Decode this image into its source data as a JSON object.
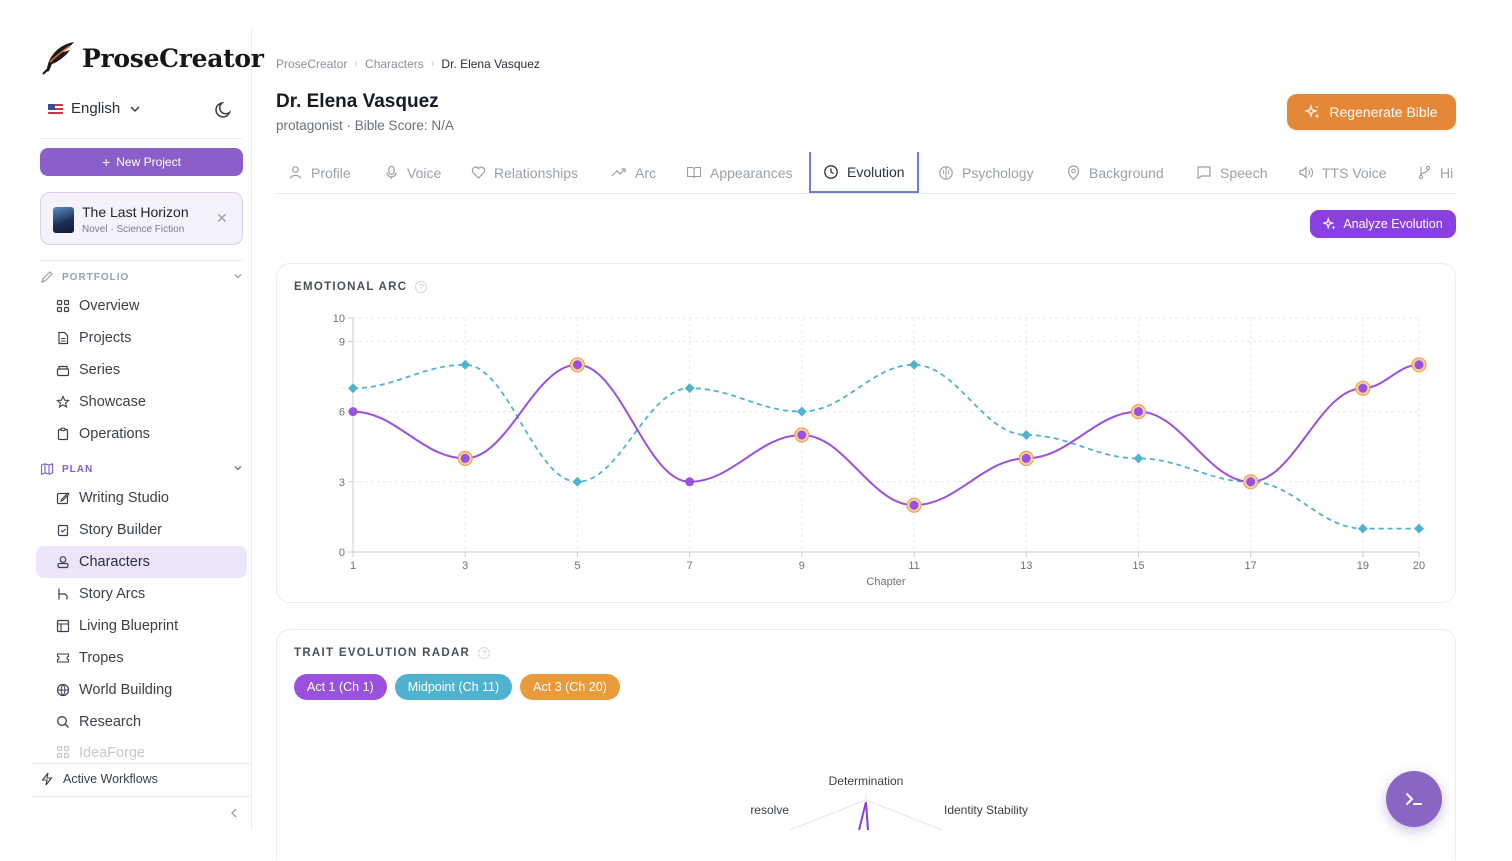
{
  "sidebar": {
    "logo_text": "ProseCreator",
    "language": "English",
    "new_project_label": "New Project",
    "project": {
      "name": "The Last Horizon",
      "meta": "Novel · Science Fiction"
    },
    "sections": [
      {
        "label": "PORTFOLIO",
        "color": "#9aa0aa",
        "items": [
          "Overview",
          "Projects",
          "Series",
          "Showcase",
          "Operations"
        ]
      },
      {
        "label": "PLAN",
        "color": "#7b5fc7",
        "items": [
          "Writing Studio",
          "Story Builder",
          "Characters",
          "Story Arcs",
          "Living Blueprint",
          "Tropes",
          "World Building",
          "Research",
          "IdeaForge"
        ]
      }
    ],
    "active_item": "Characters",
    "workflows_label": "Active Workflows"
  },
  "breadcrumb": {
    "items": [
      "ProseCreator",
      "Characters",
      "Dr. Elena Vasquez"
    ]
  },
  "header": {
    "title": "Dr. Elena Vasquez",
    "subtitle": "protagonist · Bible Score: N/A",
    "regenerate_label": "Regenerate Bible"
  },
  "tabs": [
    {
      "label": "Profile",
      "icon": "user-icon"
    },
    {
      "label": "Voice",
      "icon": "mic-icon"
    },
    {
      "label": "Relationships",
      "icon": "heart-icon"
    },
    {
      "label": "Arc",
      "icon": "trending-icon"
    },
    {
      "label": "Appearances",
      "icon": "book-icon"
    },
    {
      "label": "Evolution",
      "icon": "clock-icon"
    },
    {
      "label": "Psychology",
      "icon": "brain-icon"
    },
    {
      "label": "Background",
      "icon": "pin-icon"
    },
    {
      "label": "Speech",
      "icon": "message-icon"
    },
    {
      "label": "TTS Voice",
      "icon": "speaker-icon"
    },
    {
      "label": "Hi",
      "icon": "branch-icon"
    }
  ],
  "active_tab": "Evolution",
  "analyze_label": "Analyze Evolution",
  "emotional_arc": {
    "title": "EMOTIONAL ARC",
    "help": "?"
  },
  "chart_data": {
    "type": "line",
    "xlabel": "Chapter",
    "ylabel": "",
    "x_ticks": [
      1,
      3,
      5,
      7,
      9,
      11,
      13,
      15,
      17,
      19,
      20
    ],
    "y_ticks": [
      0,
      3,
      6,
      9,
      10
    ],
    "xlim": [
      1,
      20
    ],
    "ylim": [
      0,
      10
    ],
    "grid": true,
    "series": [
      {
        "style": "solid",
        "color": "#9b51e0",
        "x": [
          1,
          3,
          5,
          7,
          9,
          11,
          13,
          15,
          17,
          19,
          20
        ],
        "values": [
          6,
          4,
          8,
          3,
          5,
          2,
          4,
          6,
          3,
          7,
          8
        ],
        "highlighted": [
          3,
          5,
          9,
          11,
          13,
          15,
          17,
          19,
          20
        ]
      },
      {
        "style": "dashed",
        "color": "#4fb3cf",
        "x": [
          1,
          3,
          5,
          7,
          9,
          11,
          13,
          15,
          17,
          19,
          20
        ],
        "values": [
          7,
          8,
          3,
          7,
          6,
          8,
          5,
          4,
          3,
          1,
          1
        ]
      }
    ]
  },
  "trait_radar": {
    "title": "TRAIT EVOLUTION RADAR",
    "help": "?",
    "pills": [
      {
        "label": "Act 1 (Ch 1)",
        "color": "#9b51e0"
      },
      {
        "label": "Midpoint (Ch 11)",
        "color": "#4fb3cf"
      },
      {
        "label": "Act 3 (Ch 20)",
        "color": "#e99a3a"
      }
    ],
    "axis_labels": [
      "Determination",
      "Identity Stability",
      "resolve"
    ]
  }
}
